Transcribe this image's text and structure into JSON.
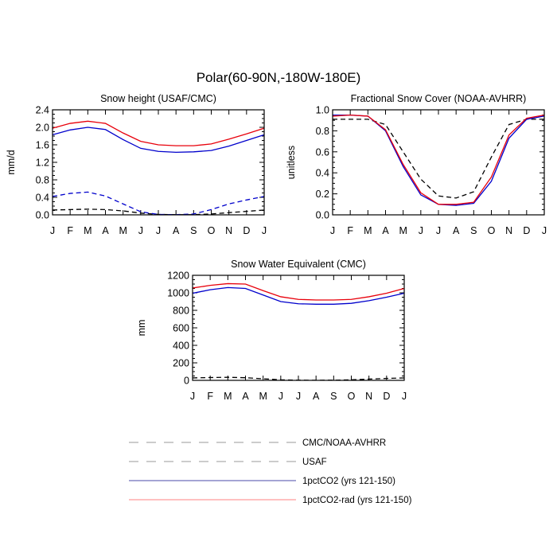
{
  "figure": {
    "title": "Polar(60-90N,-180W-180E)"
  },
  "months": [
    "J",
    "F",
    "M",
    "A",
    "M",
    "J",
    "J",
    "A",
    "S",
    "O",
    "N",
    "D",
    "J"
  ],
  "legend": [
    {
      "label": "CMC/NOAA-AVHRR",
      "color": "#000000",
      "dash": true
    },
    {
      "label": "USAF",
      "color": "#0000cc",
      "dash": true
    },
    {
      "label": "1pctCO2 (yrs 121-150)",
      "color": "#0000cc",
      "dash": false
    },
    {
      "label": "1pctCO2-rad (yrs 121-150)",
      "color": "#e8000b",
      "dash": false
    }
  ],
  "chart_data": [
    {
      "type": "line",
      "title": "Snow height (USAF/CMC)",
      "ylabel": "mm/d",
      "xlabel": "",
      "ylim": [
        0,
        2.4
      ],
      "yticks": [
        "0.0",
        "0.4",
        "0.8",
        "1.2",
        "1.6",
        "2.0",
        "2.4"
      ],
      "categories": [
        "J",
        "F",
        "M",
        "A",
        "M",
        "J",
        "J",
        "A",
        "S",
        "O",
        "N",
        "D",
        "J"
      ],
      "series": [
        {
          "name": "CMC/NOAA-AVHRR",
          "color": "#000000",
          "dash": true,
          "values": [
            0.11,
            0.12,
            0.13,
            0.12,
            0.09,
            0.04,
            0.01,
            0.005,
            0.005,
            0.02,
            0.05,
            0.08,
            0.11
          ]
        },
        {
          "name": "USAF",
          "color": "#0000cc",
          "dash": true,
          "values": [
            0.42,
            0.49,
            0.52,
            0.43,
            0.25,
            0.07,
            0.01,
            0.005,
            0.02,
            0.12,
            0.25,
            0.34,
            0.42
          ]
        },
        {
          "name": "1pctCO2 (yrs 121-150)",
          "color": "#0000cc",
          "dash": false,
          "values": [
            1.83,
            1.94,
            2.0,
            1.95,
            1.72,
            1.52,
            1.45,
            1.43,
            1.44,
            1.47,
            1.57,
            1.7,
            1.83
          ]
        },
        {
          "name": "1pctCO2-rad (yrs 121-150)",
          "color": "#e8000b",
          "dash": false,
          "values": [
            1.98,
            2.09,
            2.14,
            2.09,
            1.87,
            1.68,
            1.6,
            1.58,
            1.58,
            1.62,
            1.73,
            1.85,
            1.98
          ]
        }
      ]
    },
    {
      "type": "line",
      "title": "Fractional Snow Cover (NOAA-AVHRR)",
      "ylabel": "unitless",
      "xlabel": "",
      "ylim": [
        0,
        1.0
      ],
      "yticks": [
        "0.0",
        "0.2",
        "0.4",
        "0.6",
        "0.8",
        "1.0"
      ],
      "categories": [
        "J",
        "F",
        "M",
        "A",
        "M",
        "J",
        "J",
        "A",
        "S",
        "O",
        "N",
        "D",
        "J"
      ],
      "series": [
        {
          "name": "CMC/NOAA-AVHRR",
          "color": "#000000",
          "dash": true,
          "values": [
            0.91,
            0.91,
            0.91,
            0.86,
            0.6,
            0.34,
            0.18,
            0.16,
            0.22,
            0.55,
            0.86,
            0.91,
            0.91
          ]
        },
        {
          "name": "1pctCO2 (yrs 121-150)",
          "color": "#0000cc",
          "dash": false,
          "values": [
            0.95,
            0.95,
            0.94,
            0.8,
            0.46,
            0.19,
            0.1,
            0.09,
            0.11,
            0.32,
            0.73,
            0.91,
            0.94
          ]
        },
        {
          "name": "1pctCO2-rad (yrs 121-150)",
          "color": "#e8000b",
          "dash": false,
          "values": [
            0.94,
            0.95,
            0.94,
            0.81,
            0.48,
            0.21,
            0.1,
            0.1,
            0.12,
            0.36,
            0.76,
            0.92,
            0.95
          ]
        }
      ]
    },
    {
      "type": "line",
      "title": "Snow Water Equivalent (CMC)",
      "ylabel": "mm",
      "xlabel": "",
      "ylim": [
        0,
        1200
      ],
      "yticks": [
        "0",
        "200",
        "400",
        "600",
        "800",
        "1000",
        "1200"
      ],
      "categories": [
        "J",
        "F",
        "M",
        "A",
        "M",
        "J",
        "J",
        "A",
        "S",
        "O",
        "N",
        "D",
        "J"
      ],
      "series": [
        {
          "name": "CMC/NOAA-AVHRR",
          "color": "#000000",
          "dash": true,
          "values": [
            28,
            32,
            35,
            30,
            18,
            6,
            2,
            1,
            2,
            6,
            14,
            22,
            28
          ]
        },
        {
          "name": "1pctCO2 (yrs 121-150)",
          "color": "#0000cc",
          "dash": false,
          "values": [
            995,
            1035,
            1060,
            1050,
            975,
            900,
            875,
            870,
            870,
            880,
            910,
            950,
            995
          ]
        },
        {
          "name": "1pctCO2-rad (yrs 121-150)",
          "color": "#e8000b",
          "dash": false,
          "values": [
            1055,
            1085,
            1105,
            1100,
            1025,
            955,
            925,
            918,
            918,
            925,
            955,
            995,
            1050
          ]
        }
      ]
    }
  ]
}
